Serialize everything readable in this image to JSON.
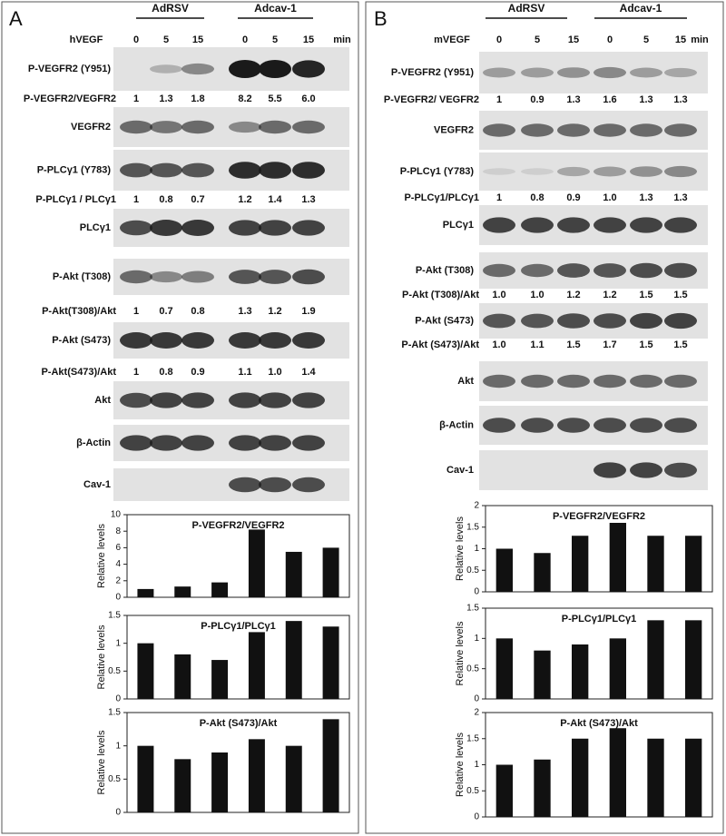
{
  "panels": [
    {
      "label": "A",
      "groups": [
        "AdRSV",
        "Adcav-1"
      ],
      "treatment": "hVEGF",
      "times": [
        0,
        5,
        15,
        0,
        5,
        15
      ],
      "unit": "min",
      "rows": [
        {
          "label": "P-VEGFR2 (Y951)"
        },
        {
          "label": "P-VEGFR2/VEGFR2",
          "values": [
            "1",
            "1.3",
            "1.8",
            "8.2",
            "5.5",
            "6.0"
          ]
        },
        {
          "label": "VEGFR2"
        },
        {
          "label": "P-PLCγ1 (Y783)"
        },
        {
          "label": "P-PLCγ1 / PLCγ1",
          "values": [
            "1",
            "0.8",
            "0.7",
            "1.2",
            "1.4",
            "1.3"
          ]
        },
        {
          "label": "PLCγ1"
        },
        {
          "label": "P-Akt (T308)"
        },
        {
          "label": "P-Akt(T308)/Akt",
          "values": [
            "1",
            "0.7",
            "0.8",
            "1.3",
            "1.2",
            "1.9"
          ]
        },
        {
          "label": "P-Akt (S473)"
        },
        {
          "label": "P-Akt(S473)/Akt",
          "values": [
            "1",
            "0.8",
            "0.9",
            "1.1",
            "1.0",
            "1.4"
          ]
        },
        {
          "label": "Akt"
        },
        {
          "label": "β-Actin"
        },
        {
          "label": "Cav-1"
        }
      ]
    },
    {
      "label": "B",
      "groups": [
        "AdRSV",
        "Adcav-1"
      ],
      "treatment": "mVEGF",
      "times": [
        0,
        5,
        15,
        0,
        5,
        15
      ],
      "unit": "min",
      "rows": [
        {
          "label": "P-VEGFR2 (Y951)"
        },
        {
          "label": "P-VEGFR2/ VEGFR2",
          "values": [
            "1",
            "0.9",
            "1.3",
            "1.6",
            "1.3",
            "1.3"
          ]
        },
        {
          "label": "VEGFR2"
        },
        {
          "label": "P-PLCγ1 (Y783)"
        },
        {
          "label": "P-PLCγ1/PLCγ1",
          "values": [
            "1",
            "0.8",
            "0.9",
            "1.0",
            "1.3",
            "1.3"
          ]
        },
        {
          "label": "PLCγ1"
        },
        {
          "label": "P-Akt (T308)"
        },
        {
          "label": "P-Akt (T308)/Akt",
          "values": [
            "1.0",
            "1.0",
            "1.2",
            "1.2",
            "1.5",
            "1.5"
          ]
        },
        {
          "label": "P-Akt (S473)"
        },
        {
          "label": "P-Akt (S473)/Akt",
          "values": [
            "1.0",
            "1.1",
            "1.5",
            "1.7",
            "1.5",
            "1.5"
          ]
        },
        {
          "label": "Akt"
        },
        {
          "label": "β-Actin"
        },
        {
          "label": "Cav-1"
        }
      ]
    }
  ],
  "chart_data": [
    {
      "type": "bar",
      "title": "P-VEGFR2/VEGFR2",
      "y_label": "Relative levels",
      "values": [
        1,
        1.3,
        1.8,
        8.2,
        5.5,
        6.0
      ],
      "color": "#111111",
      "ylim": [
        0,
        10
      ],
      "yticks": [
        0,
        2,
        4,
        6,
        8,
        10
      ]
    },
    {
      "type": "bar",
      "title": "P-PLCγ1/PLCγ1",
      "y_label": "Relative levels",
      "values": [
        1,
        0.8,
        0.7,
        1.2,
        1.4,
        1.3
      ],
      "color": "#111111",
      "ylim": [
        0,
        1.5
      ],
      "yticks": [
        0,
        0.5,
        1,
        1.5
      ]
    },
    {
      "type": "bar",
      "title": "P-Akt (S473)/Akt",
      "y_label": "Relative levels",
      "values": [
        1,
        0.8,
        0.9,
        1.1,
        1.0,
        1.4
      ],
      "color": "#111111",
      "ylim": [
        0,
        1.5
      ],
      "yticks": [
        0,
        0.5,
        1,
        1.5
      ]
    },
    {
      "type": "bar",
      "title": "P-VEGFR2/VEGFR2",
      "y_label": "Relative levels",
      "values": [
        1,
        0.9,
        1.3,
        1.6,
        1.3,
        1.3
      ],
      "color": "#111111",
      "ylim": [
        0,
        2
      ],
      "yticks": [
        0,
        0.5,
        1,
        1.5,
        2
      ]
    },
    {
      "type": "bar",
      "title": "P-PLCγ1/PLCγ1",
      "y_label": "Relative levels",
      "values": [
        1,
        0.8,
        0.9,
        1.0,
        1.3,
        1.3
      ],
      "color": "#111111",
      "ylim": [
        0,
        1.5
      ],
      "yticks": [
        0,
        0.5,
        1,
        1.5
      ]
    },
    {
      "type": "bar",
      "title": "P-Akt (S473)/Akt",
      "y_label": "Relative levels",
      "values": [
        1,
        1.1,
        1.5,
        1.7,
        1.5,
        1.5
      ],
      "color": "#111111",
      "ylim": [
        0,
        2
      ],
      "yticks": [
        0,
        0.5,
        1,
        1.5,
        2
      ]
    }
  ]
}
